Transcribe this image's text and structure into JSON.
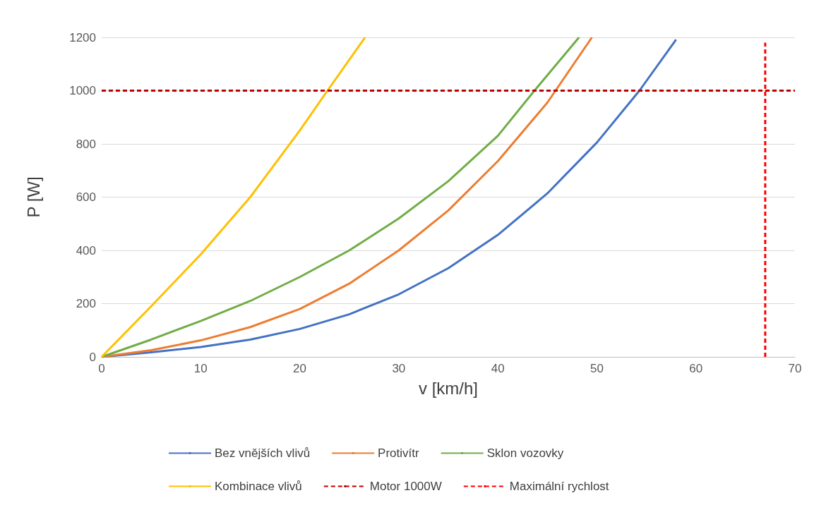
{
  "chart_data": {
    "type": "line",
    "xlabel": "v [km/h]",
    "ylabel": "P [W]",
    "xlim": [
      0,
      70
    ],
    "xticks": [
      0,
      10,
      20,
      30,
      40,
      50,
      60,
      70
    ],
    "ylim": [
      0,
      1200
    ],
    "yticks": [
      0,
      200,
      400,
      600,
      800,
      1000,
      1200
    ],
    "grid": "y",
    "legend": "bottom",
    "marker": "none",
    "series": [
      {
        "name": "Bez vnějších vlivů",
        "color": "#4472c4",
        "line_style": "solid",
        "x": [
          0,
          5,
          10,
          15,
          20,
          25,
          30,
          35,
          40,
          45,
          50,
          54.3,
          58
        ],
        "values": [
          0,
          17,
          37,
          65,
          105,
          160,
          235,
          333,
          458,
          614,
          805,
          1000,
          1192
        ]
      },
      {
        "name": "Protivítr",
        "color": "#ed7d31",
        "line_style": "solid",
        "x": [
          0,
          5,
          10,
          15,
          20,
          25,
          30,
          35,
          40,
          45,
          49.5
        ],
        "values": [
          0,
          25,
          62,
          112,
          180,
          275,
          400,
          550,
          735,
          955,
          1200
        ]
      },
      {
        "name": "Sklon vozovky",
        "color": "#70ad47",
        "line_style": "solid",
        "x": [
          0,
          5,
          10,
          15,
          20,
          25,
          30,
          35,
          40,
          43.7,
          48.2
        ],
        "values": [
          0,
          65,
          135,
          210,
          300,
          400,
          520,
          660,
          830,
          1000,
          1200
        ]
      },
      {
        "name": "Kombinace vlivů",
        "color": "#ffc000",
        "line_style": "solid",
        "x": [
          0,
          5,
          10,
          15,
          20,
          22.8,
          26.6
        ],
        "values": [
          0,
          190,
          385,
          600,
          850,
          1000,
          1200
        ]
      },
      {
        "name": "Motor 1000W",
        "color": "#c00000",
        "line_style": "dashed",
        "x": [
          0,
          70
        ],
        "values": [
          1000,
          1000
        ]
      },
      {
        "name": "Maximální rychlost",
        "color": "#ff0000",
        "line_style": "dashed",
        "x": [
          67,
          67
        ],
        "values": [
          0,
          1180
        ]
      }
    ]
  }
}
